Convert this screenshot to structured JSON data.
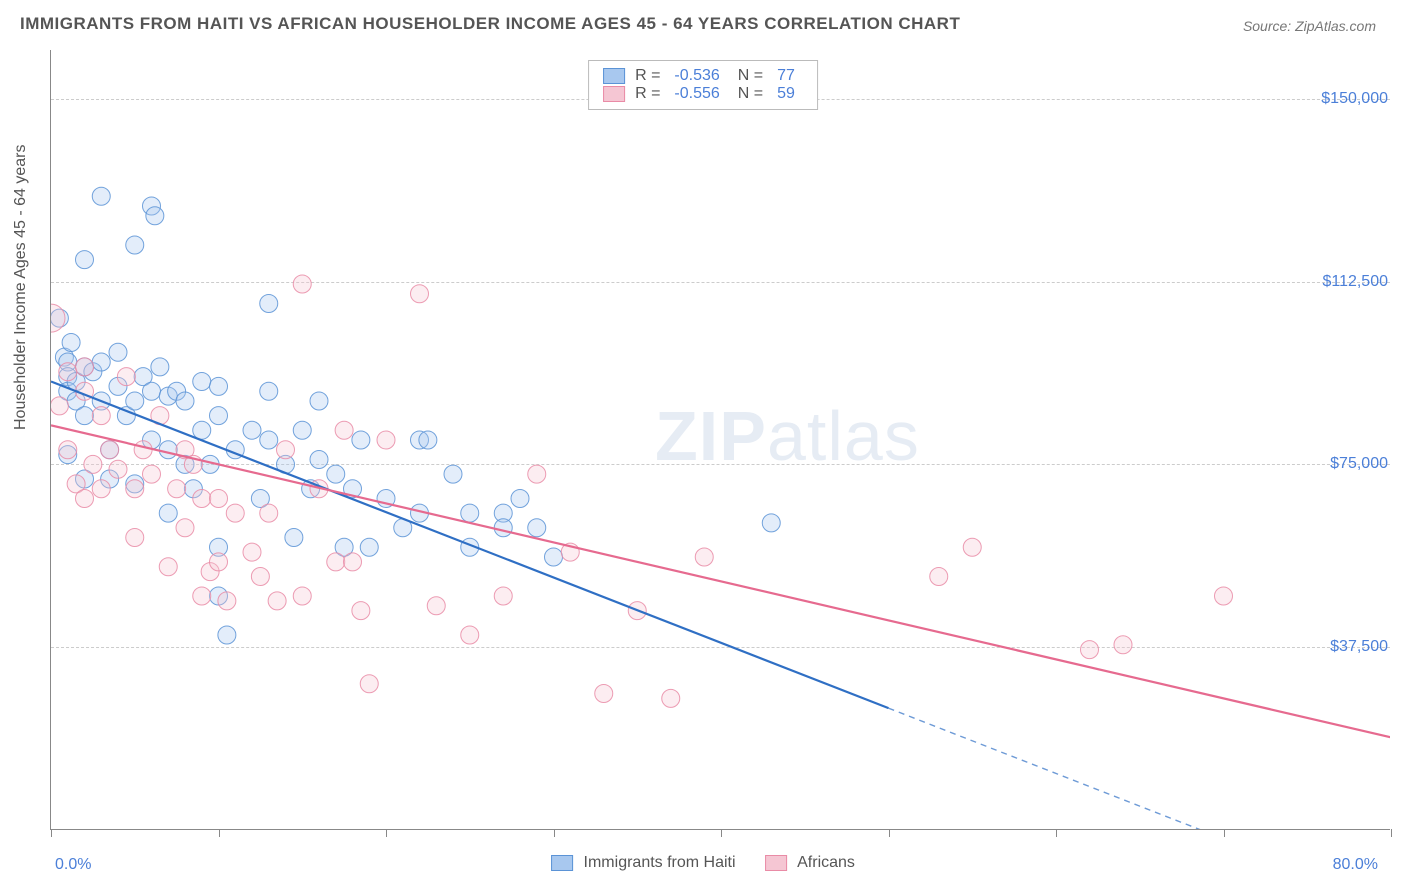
{
  "title": "IMMIGRANTS FROM HAITI VS AFRICAN HOUSEHOLDER INCOME AGES 45 - 64 YEARS CORRELATION CHART",
  "source_prefix": "Source: ",
  "source_name": "ZipAtlas.com",
  "y_axis_title": "Householder Income Ages 45 - 64 years",
  "watermark_bold": "ZIP",
  "watermark_rest": "atlas",
  "chart": {
    "type": "scatter",
    "xlim": [
      0,
      80
    ],
    "ylim": [
      0,
      160000
    ],
    "x_label_min": "0.0%",
    "x_label_max": "80.0%",
    "y_ticks": [
      37500,
      75000,
      112500,
      150000
    ],
    "y_tick_labels": [
      "$37,500",
      "$75,000",
      "$112,500",
      "$150,000"
    ],
    "x_ticks": [
      0,
      10,
      20,
      30,
      40,
      50,
      60,
      70,
      80
    ],
    "background_color": "#ffffff",
    "grid_color": "#cccccc",
    "axis_color": "#888888",
    "text_color": "#555555",
    "value_color": "#4b7fd8",
    "marker_radius": 9,
    "marker_radius_large": 14,
    "marker_opacity": 0.32,
    "marker_stroke_opacity": 0.85,
    "line_width": 2.2
  },
  "series": [
    {
      "name": "Immigrants from Haiti",
      "color_fill": "#a8c8ef",
      "color_stroke": "#5b93d6",
      "color_line": "#2f6fc4",
      "R": "-0.536",
      "N": "77",
      "trend": {
        "x1": 0,
        "y1": 92000,
        "x2": 50,
        "y2": 25000,
        "dash_to_x": 80,
        "dash_to_y": -15200
      },
      "points": [
        [
          0.5,
          105000
        ],
        [
          0.8,
          97000
        ],
        [
          1,
          96000
        ],
        [
          1,
          93000
        ],
        [
          1,
          90000
        ],
        [
          1,
          77000
        ],
        [
          1.2,
          100000
        ],
        [
          1.5,
          92000
        ],
        [
          1.5,
          88000
        ],
        [
          2,
          117000
        ],
        [
          2,
          95000
        ],
        [
          2,
          85000
        ],
        [
          2,
          72000
        ],
        [
          2.5,
          94000
        ],
        [
          3,
          130000
        ],
        [
          3,
          96000
        ],
        [
          3,
          88000
        ],
        [
          3.5,
          78000
        ],
        [
          3.5,
          72000
        ],
        [
          4,
          98000
        ],
        [
          4,
          91000
        ],
        [
          4.5,
          85000
        ],
        [
          5,
          120000
        ],
        [
          5,
          88000
        ],
        [
          5,
          71000
        ],
        [
          5.5,
          93000
        ],
        [
          6,
          128000
        ],
        [
          6,
          90000
        ],
        [
          6,
          80000
        ],
        [
          6.2,
          126000
        ],
        [
          6.5,
          95000
        ],
        [
          7,
          89000
        ],
        [
          7,
          78000
        ],
        [
          7,
          65000
        ],
        [
          7.5,
          90000
        ],
        [
          8,
          88000
        ],
        [
          8,
          75000
        ],
        [
          8.5,
          70000
        ],
        [
          9,
          92000
        ],
        [
          9,
          82000
        ],
        [
          9.5,
          75000
        ],
        [
          10,
          91000
        ],
        [
          10,
          85000
        ],
        [
          10,
          58000
        ],
        [
          10,
          48000
        ],
        [
          10.5,
          40000
        ],
        [
          11,
          78000
        ],
        [
          12,
          82000
        ],
        [
          12.5,
          68000
        ],
        [
          13,
          108000
        ],
        [
          13,
          90000
        ],
        [
          13,
          80000
        ],
        [
          14,
          75000
        ],
        [
          14.5,
          60000
        ],
        [
          15,
          82000
        ],
        [
          15.5,
          70000
        ],
        [
          16,
          76000
        ],
        [
          16,
          88000
        ],
        [
          17,
          73000
        ],
        [
          17.5,
          58000
        ],
        [
          18,
          70000
        ],
        [
          18.5,
          80000
        ],
        [
          19,
          58000
        ],
        [
          20,
          68000
        ],
        [
          21,
          62000
        ],
        [
          22,
          65000
        ],
        [
          22,
          80000
        ],
        [
          22.5,
          80000
        ],
        [
          24,
          73000
        ],
        [
          25,
          58000
        ],
        [
          25,
          65000
        ],
        [
          27,
          65000
        ],
        [
          27,
          62000
        ],
        [
          28,
          68000
        ],
        [
          29,
          62000
        ],
        [
          30,
          56000
        ],
        [
          43,
          63000
        ]
      ]
    },
    {
      "name": "Africans",
      "color_fill": "#f5c6d3",
      "color_stroke": "#e98ba6",
      "color_line": "#e66a8f",
      "R": "-0.556",
      "N": "59",
      "trend": {
        "x1": 0,
        "y1": 83000,
        "x2": 80,
        "y2": 19000
      },
      "large_points": [
        [
          0,
          105000
        ]
      ],
      "points": [
        [
          0.5,
          87000
        ],
        [
          1,
          94000
        ],
        [
          1,
          78000
        ],
        [
          1.5,
          71000
        ],
        [
          2,
          95000
        ],
        [
          2,
          90000
        ],
        [
          2,
          68000
        ],
        [
          2.5,
          75000
        ],
        [
          3,
          85000
        ],
        [
          3,
          70000
        ],
        [
          3.5,
          78000
        ],
        [
          4,
          74000
        ],
        [
          4.5,
          93000
        ],
        [
          5,
          70000
        ],
        [
          5,
          60000
        ],
        [
          5.5,
          78000
        ],
        [
          6,
          73000
        ],
        [
          6.5,
          85000
        ],
        [
          7,
          54000
        ],
        [
          7.5,
          70000
        ],
        [
          8,
          78000
        ],
        [
          8,
          62000
        ],
        [
          8.5,
          75000
        ],
        [
          9,
          68000
        ],
        [
          9,
          48000
        ],
        [
          9.5,
          53000
        ],
        [
          10,
          68000
        ],
        [
          10,
          55000
        ],
        [
          10.5,
          47000
        ],
        [
          11,
          65000
        ],
        [
          12,
          57000
        ],
        [
          12.5,
          52000
        ],
        [
          13,
          65000
        ],
        [
          13.5,
          47000
        ],
        [
          14,
          78000
        ],
        [
          15,
          112000
        ],
        [
          15,
          48000
        ],
        [
          16,
          70000
        ],
        [
          17,
          55000
        ],
        [
          17.5,
          82000
        ],
        [
          18,
          55000
        ],
        [
          18.5,
          45000
        ],
        [
          19,
          30000
        ],
        [
          20,
          80000
        ],
        [
          22,
          110000
        ],
        [
          23,
          46000
        ],
        [
          25,
          40000
        ],
        [
          27,
          48000
        ],
        [
          29,
          73000
        ],
        [
          31,
          57000
        ],
        [
          33,
          28000
        ],
        [
          35,
          45000
        ],
        [
          37,
          27000
        ],
        [
          39,
          56000
        ],
        [
          53,
          52000
        ],
        [
          55,
          58000
        ],
        [
          62,
          37000
        ],
        [
          64,
          38000
        ],
        [
          70,
          48000
        ]
      ]
    }
  ],
  "legend_bottom": [
    {
      "label": "Immigrants from Haiti",
      "fill": "#a8c8ef",
      "stroke": "#5b93d6"
    },
    {
      "label": "Africans",
      "fill": "#f5c6d3",
      "stroke": "#e98ba6"
    }
  ]
}
